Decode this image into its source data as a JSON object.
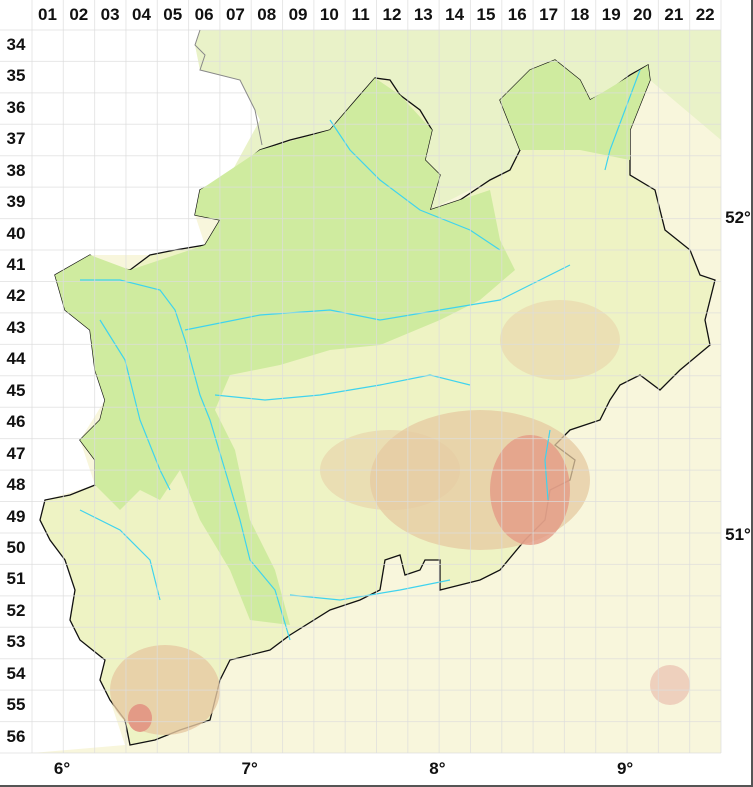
{
  "map": {
    "column_labels": [
      "01",
      "02",
      "03",
      "04",
      "05",
      "06",
      "07",
      "08",
      "09",
      "10",
      "11",
      "12",
      "13",
      "14",
      "15",
      "16",
      "17",
      "18",
      "19",
      "20",
      "21",
      "22"
    ],
    "row_labels": [
      "34",
      "35",
      "36",
      "37",
      "38",
      "39",
      "40",
      "41",
      "42",
      "43",
      "44",
      "45",
      "46",
      "47",
      "48",
      "49",
      "50",
      "51",
      "52",
      "53",
      "54",
      "55",
      "56"
    ],
    "longitude_labels": [
      {
        "label": "6°",
        "lon": 6
      },
      {
        "label": "7°",
        "lon": 7
      },
      {
        "label": "8°",
        "lon": 8
      },
      {
        "label": "9°",
        "lon": 9
      }
    ],
    "latitude_labels": [
      {
        "label": "52°",
        "lat": 52
      },
      {
        "label": "51°",
        "lat": 51
      }
    ],
    "colors": {
      "lowland": "#cfeb9f",
      "upland": "#eef3c4",
      "outside": "#f8f6dc",
      "relief_high": "#e39a86",
      "relief_mid": "#e6c9a2",
      "river": "#3fd3ee",
      "border": "#111111",
      "foreign_border": "#888888",
      "grid": "#dddddd"
    }
  }
}
